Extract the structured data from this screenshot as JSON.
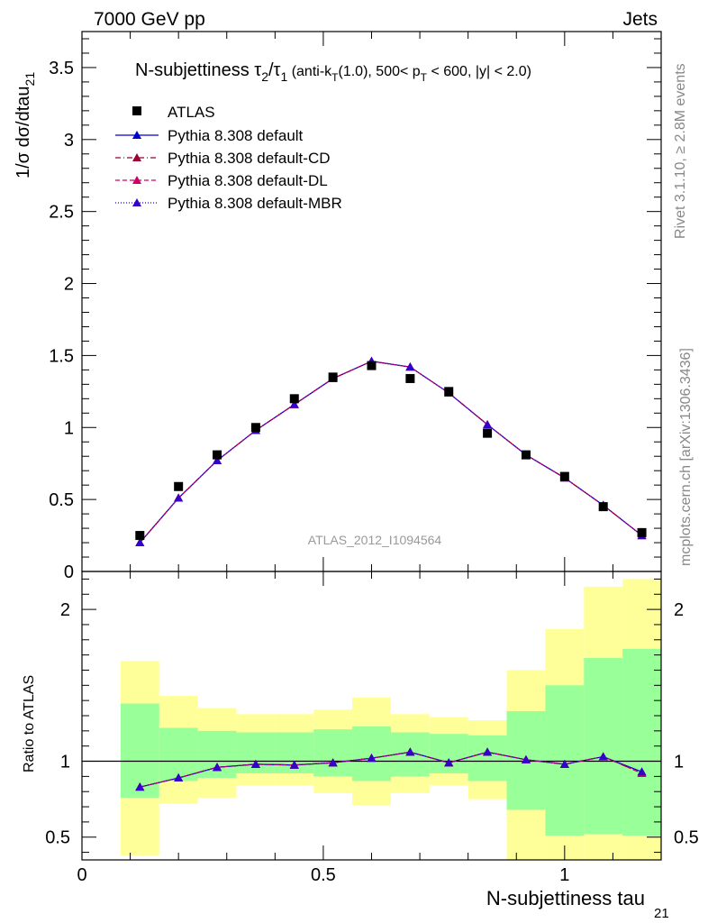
{
  "header": {
    "left": "7000 GeV pp",
    "right": "Jets"
  },
  "side_labels": {
    "events": "Rivet 3.1.10, ≥ 2.8M events",
    "source": "mcplots.cern.ch [arXiv:1306.3436]"
  },
  "watermark": "ATLAS_2012_I1094564",
  "title": {
    "main": "N-subjettiness τ",
    "sub2": "2",
    "slash": "/τ",
    "sub1": "1",
    "cond_a": " (anti-k",
    "cond_sub_t": "T",
    "cond_b": "(1.0), 500< p",
    "cond_sub_t2": "T",
    "cond_c": " < 600, |y| < 2.0)"
  },
  "axes": {
    "ylabel_main": "1/σ dσ/dtau",
    "ylabel_main_sub": "21",
    "ylabel_ratio": "Ratio to ATLAS",
    "xlabel": "N-subjettiness tau",
    "xlabel_sub": "21"
  },
  "chart_data": {
    "type": "scatter",
    "xlim": [
      0,
      1.2
    ],
    "main_ylim": [
      0,
      3.75
    ],
    "ratio_ylim": [
      0.35,
      2.25
    ],
    "x_ticks": [
      "0",
      "0.5",
      "1"
    ],
    "main_y_ticks": [
      "0",
      "0.5",
      "1",
      "1.5",
      "2",
      "2.5",
      "3",
      "3.5"
    ],
    "ratio_y_ticks": [
      "0.5",
      "1",
      "2"
    ],
    "legend_position": "top-left",
    "bin_edges": [
      0.08,
      0.16,
      0.24,
      0.32,
      0.4,
      0.48,
      0.56,
      0.64,
      0.72,
      0.8,
      0.88,
      0.96,
      1.04,
      1.12,
      1.2
    ],
    "x": [
      0.12,
      0.2,
      0.28,
      0.36,
      0.44,
      0.52,
      0.6,
      0.68,
      0.76,
      0.84,
      0.92,
      1.0,
      1.08,
      1.16
    ],
    "atlas": {
      "name": "ATLAS",
      "values": [
        0.25,
        0.59,
        0.81,
        1.0,
        1.2,
        1.35,
        1.43,
        1.34,
        1.25,
        0.96,
        0.81,
        0.66,
        0.45,
        0.27
      ]
    },
    "series": [
      {
        "name": "Pythia 8.308 default",
        "color": "#0000cc",
        "dash": "",
        "values": [
          0.2,
          0.51,
          0.77,
          0.98,
          1.16,
          1.34,
          1.46,
          1.42,
          1.24,
          1.02,
          0.81,
          0.65,
          0.46,
          0.25
        ],
        "ratio": [
          0.83,
          0.89,
          0.96,
          0.98,
          0.975,
          0.99,
          1.02,
          1.06,
          0.99,
          1.06,
          1.01,
          0.98,
          1.03,
          0.93
        ]
      },
      {
        "name": "Pythia 8.308 default-CD",
        "color": "#990033",
        "dash": "6,3,1,3",
        "values": [
          0.2,
          0.51,
          0.77,
          0.98,
          1.16,
          1.34,
          1.46,
          1.42,
          1.24,
          1.02,
          0.81,
          0.65,
          0.46,
          0.25
        ],
        "ratio": [
          0.83,
          0.89,
          0.96,
          0.98,
          0.975,
          0.99,
          1.02,
          1.06,
          0.99,
          1.06,
          1.01,
          0.98,
          1.03,
          0.92
        ]
      },
      {
        "name": "Pythia 8.308 default-DL",
        "color": "#cc0066",
        "dash": "5,3",
        "values": [
          0.2,
          0.51,
          0.77,
          0.98,
          1.16,
          1.34,
          1.46,
          1.42,
          1.24,
          1.02,
          0.81,
          0.65,
          0.46,
          0.25
        ],
        "ratio": [
          0.83,
          0.89,
          0.96,
          0.98,
          0.975,
          0.99,
          1.02,
          1.06,
          0.99,
          1.06,
          1.01,
          0.98,
          1.03,
          0.92
        ]
      },
      {
        "name": "Pythia 8.308 default-MBR",
        "color": "#3300cc",
        "dash": "1,2",
        "values": [
          0.2,
          0.51,
          0.77,
          0.98,
          1.16,
          1.34,
          1.46,
          1.42,
          1.24,
          1.02,
          0.81,
          0.65,
          0.46,
          0.25
        ],
        "ratio": [
          0.83,
          0.89,
          0.96,
          0.98,
          0.975,
          0.99,
          1.02,
          1.06,
          0.99,
          1.06,
          1.01,
          0.98,
          1.03,
          0.93
        ]
      }
    ],
    "band_green": {
      "lo": [
        0.76,
        0.87,
        0.89,
        0.92,
        0.92,
        0.9,
        0.87,
        0.9,
        0.92,
        0.87,
        0.68,
        0.51,
        0.52,
        0.51
      ],
      "hi": [
        1.38,
        1.22,
        1.2,
        1.19,
        1.19,
        1.21,
        1.23,
        1.19,
        1.18,
        1.17,
        1.33,
        1.5,
        1.68,
        1.74
      ]
    },
    "band_yellow": {
      "lo": [
        0.38,
        0.72,
        0.76,
        0.84,
        0.84,
        0.79,
        0.71,
        0.79,
        0.84,
        0.75,
        0.35,
        0.35,
        0.35,
        0.35
      ],
      "hi": [
        1.66,
        1.43,
        1.35,
        1.31,
        1.31,
        1.34,
        1.42,
        1.31,
        1.29,
        1.27,
        1.6,
        1.87,
        2.15,
        2.2
      ]
    }
  }
}
